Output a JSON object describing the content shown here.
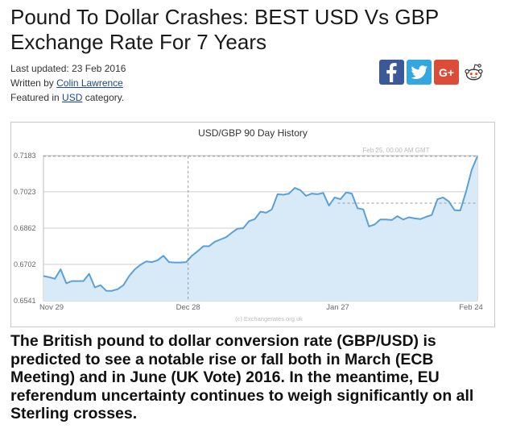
{
  "article": {
    "title": "Pound To Dollar Crashes: BEST USD Vs GBP Exchange Rate For 7 Years",
    "last_updated_label": "Last updated: ",
    "last_updated_value": "23 Feb 2016",
    "written_by_label": "Written by ",
    "author": "Colin Lawrence",
    "featured_prefix": "Featured in ",
    "category": "USD",
    "featured_suffix": " category.",
    "body": "The British pound to dollar conversion rate (GBP/USD) is predicted to see a notable rise or fall both in March (ECB Meeting) and in June (UK Vote) 2016. In the meantime, EU referendum uncertainty continues to weigh significantly on all Sterling crosses."
  },
  "social": {
    "facebook_icon": "facebook-icon",
    "twitter_icon": "twitter-icon",
    "googleplus_icon": "google-plus-icon",
    "googleplus_label": "G+",
    "reddit_icon": "reddit-icon",
    "colors": {
      "facebook": "#3b5998",
      "twitter": "#34a7e0",
      "googleplus": "#dd4b39"
    }
  },
  "chart_data": {
    "type": "area",
    "title": "USD/GBP  90 Day History",
    "annotation": "Feb 25, 00:00 AM GMT",
    "watermark": "(c) Exchangerates.org.uk",
    "x_tick_labels": [
      "Nov 29",
      "Dec 28",
      "Jan 27",
      "Feb 24"
    ],
    "y_tick_labels": [
      "0.7183",
      "0.7023",
      "0.6862",
      "0.6702",
      "0.6541"
    ],
    "ylim": [
      0.6541,
      0.7183
    ],
    "grid": true,
    "line_color": "#5aa0d8",
    "fill_color": "#d8eaf8",
    "series": [
      {
        "values": [
          0.665,
          0.6645,
          0.6638,
          0.668,
          0.6618,
          0.6628,
          0.6628,
          0.6628,
          0.666,
          0.66,
          0.661,
          0.6585,
          0.6585,
          0.6592,
          0.661,
          0.665,
          0.668,
          0.67,
          0.6715,
          0.6712,
          0.672,
          0.674,
          0.6712,
          0.671,
          0.671,
          0.6712,
          0.674,
          0.676,
          0.6782,
          0.6782,
          0.6802,
          0.6812,
          0.6822,
          0.6842,
          0.686,
          0.6862,
          0.6893,
          0.6902,
          0.6935,
          0.693,
          0.6945,
          0.7012,
          0.701,
          0.7015,
          0.704,
          0.703,
          0.7005,
          0.7015,
          0.7012,
          0.7018,
          0.6962,
          0.6998,
          0.699,
          0.702,
          0.7015,
          0.695,
          0.6945,
          0.687,
          0.6878,
          0.69,
          0.69,
          0.6898,
          0.6915,
          0.69,
          0.691,
          0.6905,
          0.6902,
          0.6912,
          0.692,
          0.699,
          0.6998,
          0.698,
          0.6942,
          0.694,
          0.7022,
          0.712,
          0.718
        ]
      }
    ]
  }
}
